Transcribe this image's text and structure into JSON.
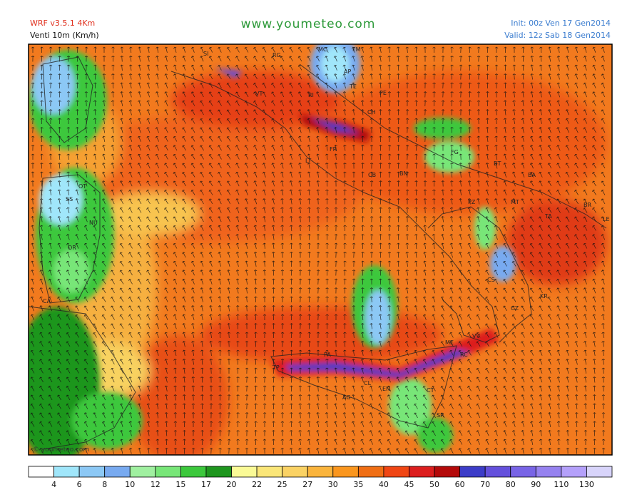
{
  "header": {
    "model": "WRF v3.5.1 4Km",
    "field": "Venti 10m (Km/h)",
    "site": "www.youmeteo.com",
    "init": "Init: 00z Ven  17 Gen2014",
    "valid": "Valid: 12z Sab  18 Gen2014"
  },
  "map": {
    "watermark": "© youmeteo.com",
    "places": [
      "SI",
      "RG",
      "MC",
      "FM",
      "AP",
      "TE",
      "PE",
      "CH",
      "VT",
      "RI",
      "FR",
      "LT",
      "CB",
      "BN",
      "FG",
      "BT",
      "BA",
      "MT",
      "TA",
      "BR",
      "LE",
      "PZ",
      "CS",
      "KR",
      "CZ",
      "VV",
      "RC",
      "ME",
      "TP",
      "PA",
      "AG",
      "CL",
      "EN",
      "CT",
      "SR",
      "SS",
      "OT",
      "NU",
      "OR",
      "CA"
    ]
  },
  "colorbar": {
    "labels": [
      4,
      6,
      8,
      10,
      12,
      15,
      17,
      20,
      22,
      25,
      27,
      30,
      35,
      40,
      45,
      50,
      60,
      70,
      80,
      90,
      110,
      130
    ],
    "colors": [
      "#ffffff",
      "#a0e6fa",
      "#8cc8f5",
      "#78aaf0",
      "#a0f0a0",
      "#78e678",
      "#3cc83c",
      "#1e961e",
      "#fafa96",
      "#fae678",
      "#fad264",
      "#fab43c",
      "#fa961e",
      "#f06e14",
      "#f04614",
      "#dc1e1e",
      "#b40a0a",
      "#3c3cc8",
      "#6450dc",
      "#7864e6",
      "#9682f0",
      "#b4a0fa",
      "#d8d4fa"
    ]
  }
}
